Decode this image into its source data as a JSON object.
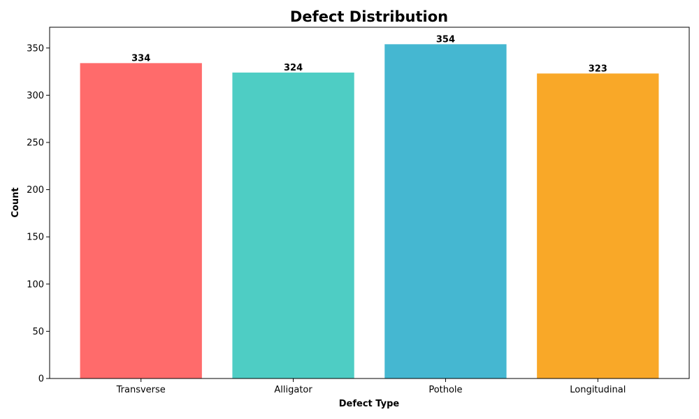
{
  "chart_data": {
    "type": "bar",
    "title": "Defect Distribution",
    "xlabel": "Defect Type",
    "ylabel": "Count",
    "categories": [
      "Transverse",
      "Alligator",
      "Pothole",
      "Longitudinal"
    ],
    "values": [
      334,
      324,
      354,
      323
    ],
    "colors": [
      "#ff6b6b",
      "#4ecdc4",
      "#45b7d1",
      "#f9a828"
    ],
    "ylim": [
      0,
      372
    ],
    "yticks": [
      0,
      50,
      100,
      150,
      200,
      250,
      300,
      350
    ],
    "grid": false,
    "legend": "none"
  }
}
